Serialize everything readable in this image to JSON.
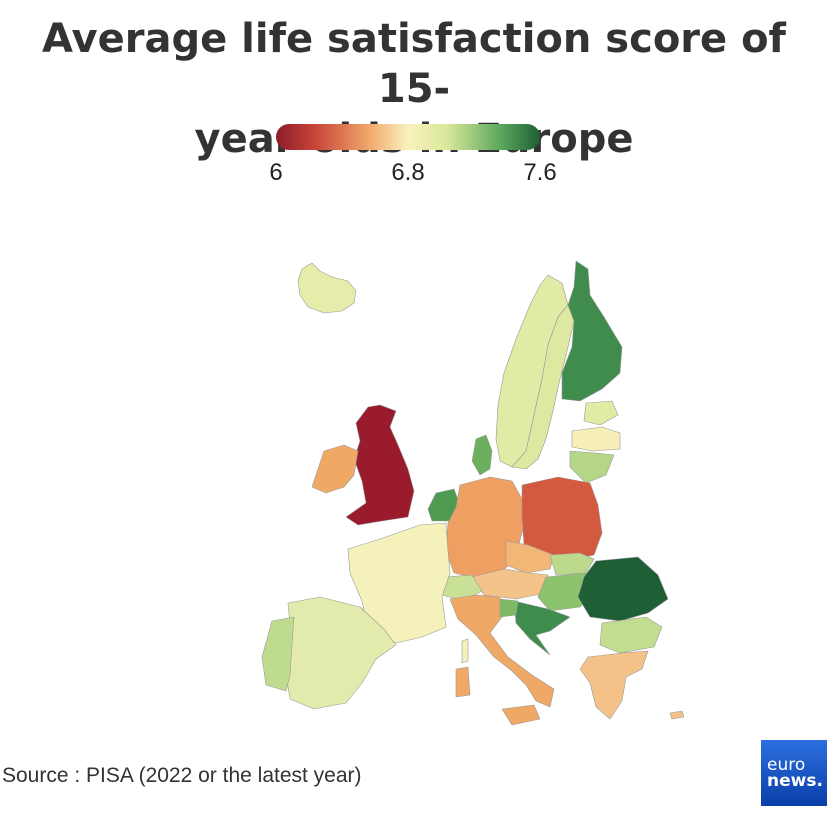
{
  "title": {
    "line1": "Average life satisfaction score of 15-",
    "line2": "year-olds in Europe"
  },
  "legend": {
    "min_label": "6",
    "mid_label": "6.8",
    "max_label": "7.6",
    "colors": [
      "#8e1b2a",
      "#c8453a",
      "#f0a66a",
      "#f9f1bd",
      "#d9e79a",
      "#5aa85c",
      "#1f5f35"
    ]
  },
  "source": "Source : PISA (2022 or the latest year)",
  "logo": {
    "line1": "euro",
    "line2": "news."
  },
  "map_colors": {
    "iceland": "#e6edab",
    "norway": "#e1eba5",
    "sweden": "#dde8a0",
    "finland": "#3f8c4d",
    "estonia": "#e0eba6",
    "latvia": "#f6efb8",
    "lithuania": "#b5d686",
    "denmark": "#6cb05e",
    "uk": "#9a1b2b",
    "ireland": "#f0a964",
    "netherlands": "#4d9a50",
    "germany": "#ee9f61",
    "poland": "#d45a3f",
    "czechia": "#f2b676",
    "slovakia": "#bcd98c",
    "austria": "#f4c38a",
    "hungary": "#8cc36d",
    "switzerland": "#c9e196",
    "france": "#f5f1ba",
    "spain": "#e3ebac",
    "portugal": "#bfdc8e",
    "italy": "#efa866",
    "croatia": "#3f8c4d",
    "slovenia": "#7dba64",
    "romania": "#1f5f35",
    "bulgaria": "#c2dd90",
    "greece": "#f4c288",
    "serbia_area": "#ffffff",
    "corsica": "#f5f1ba",
    "sardinia": "#efa866",
    "cyprus": "#f4c288"
  }
}
